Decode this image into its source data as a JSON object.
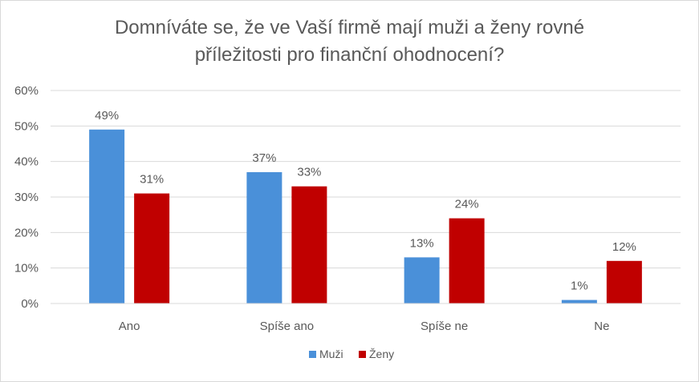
{
  "chart_data": {
    "type": "bar",
    "title": "Domníváte se, že ve Vaší firmě mají muži a ženy rovné příležitosti pro finanční ohodnocení?",
    "title_lines": [
      "Domníváte se, že ve Vaší firmě mají muži a ženy rovné",
      "příležitosti pro finanční ohodnocení?"
    ],
    "categories": [
      "Ano",
      "Spíše ano",
      "Spíše ne",
      "Ne"
    ],
    "series": [
      {
        "name": "Muži",
        "color": "#4A90D9",
        "values": [
          49,
          37,
          13,
          1
        ],
        "labels": [
          "49%",
          "37%",
          "13%",
          "1%"
        ]
      },
      {
        "name": "Ženy",
        "color": "#C00000",
        "values": [
          31,
          33,
          24,
          12
        ],
        "labels": [
          "31%",
          "33%",
          "24%",
          "12%"
        ]
      }
    ],
    "ylim": [
      0,
      60
    ],
    "y_ticks": [
      0,
      10,
      20,
      30,
      40,
      50,
      60
    ],
    "y_tick_labels": [
      "0%",
      "10%",
      "20%",
      "30%",
      "40%",
      "50%",
      "60%"
    ],
    "xlabel": "",
    "ylabel": "",
    "grid": true,
    "gridline_color": "#d9d9d9",
    "legend_position": "bottom"
  }
}
